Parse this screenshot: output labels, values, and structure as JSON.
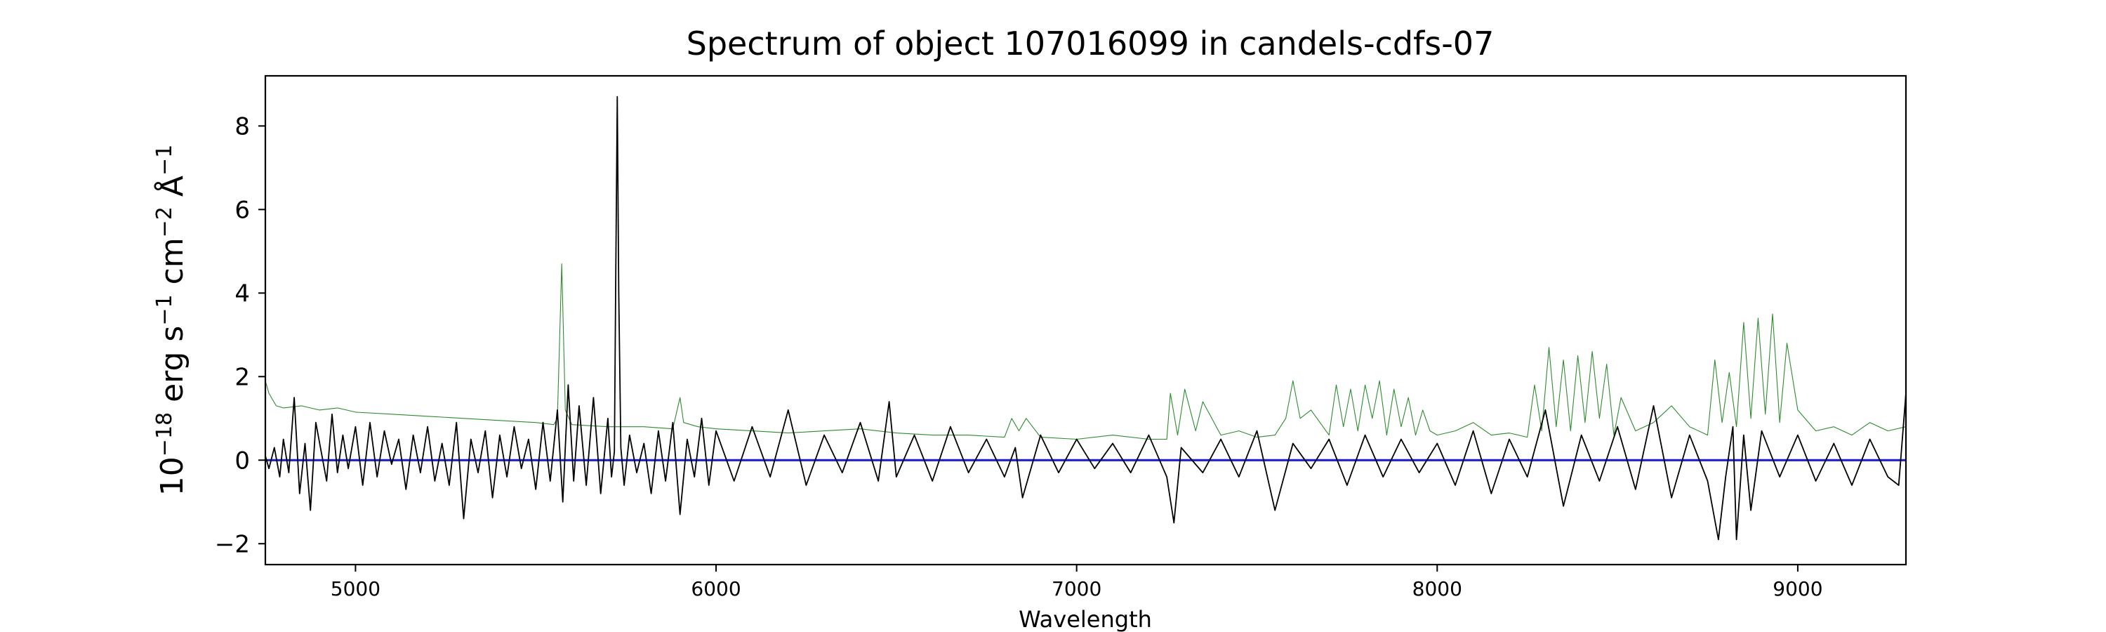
{
  "chart_data": {
    "type": "line",
    "title": "Spectrum of object 107016099 in candels-cdfs-07",
    "xlabel": "Wavelength",
    "ylabel": {
      "parts": [
        {
          "text": "10",
          "sup": false
        },
        {
          "text": "−18",
          "sup": true
        },
        {
          "text": " erg s",
          "sup": false
        },
        {
          "text": "−1",
          "sup": true
        },
        {
          "text": " cm",
          "sup": false
        },
        {
          "text": "−2",
          "sup": true
        },
        {
          "text": " Å",
          "sup": false
        },
        {
          "text": "−1",
          "sup": true
        }
      ]
    },
    "xlim": [
      4750,
      9300
    ],
    "ylim": [
      -2.5,
      9.2
    ],
    "xticks": [
      {
        "value": 5000,
        "label": "5000"
      },
      {
        "value": 6000,
        "label": "6000"
      },
      {
        "value": 7000,
        "label": "7000"
      },
      {
        "value": 8000,
        "label": "8000"
      },
      {
        "value": 9000,
        "label": "9000"
      }
    ],
    "yticks": [
      {
        "value": -2,
        "label": "−2"
      },
      {
        "value": 0,
        "label": "0"
      },
      {
        "value": 2,
        "label": "2"
      },
      {
        "value": 4,
        "label": "4"
      },
      {
        "value": 6,
        "label": "6"
      },
      {
        "value": 8,
        "label": "8"
      }
    ],
    "grid": false,
    "legend": "none",
    "series": [
      {
        "role": "flux",
        "color": "#000000",
        "width": 1.8,
        "x": [
          4750,
          4760,
          4775,
          4790,
          4800,
          4815,
          4830,
          4845,
          4860,
          4875,
          4890,
          4905,
          4920,
          4935,
          4950,
          4965,
          4980,
          5000,
          5020,
          5040,
          5060,
          5080,
          5100,
          5120,
          5140,
          5160,
          5180,
          5200,
          5220,
          5240,
          5260,
          5280,
          5300,
          5320,
          5340,
          5360,
          5380,
          5400,
          5420,
          5440,
          5460,
          5480,
          5500,
          5520,
          5540,
          5560,
          5575,
          5590,
          5605,
          5620,
          5640,
          5660,
          5680,
          5700,
          5710,
          5718,
          5722,
          5726,
          5730,
          5736,
          5745,
          5760,
          5780,
          5800,
          5820,
          5840,
          5860,
          5880,
          5900,
          5920,
          5940,
          5960,
          5980,
          6000,
          6050,
          6100,
          6150,
          6200,
          6250,
          6300,
          6350,
          6400,
          6450,
          6480,
          6500,
          6550,
          6600,
          6650,
          6700,
          6750,
          6800,
          6830,
          6850,
          6900,
          6950,
          7000,
          7050,
          7100,
          7150,
          7200,
          7250,
          7270,
          7290,
          7350,
          7400,
          7450,
          7500,
          7550,
          7600,
          7650,
          7700,
          7750,
          7800,
          7850,
          7900,
          7950,
          8000,
          8050,
          8100,
          8150,
          8200,
          8250,
          8300,
          8350,
          8400,
          8450,
          8500,
          8550,
          8600,
          8650,
          8700,
          8750,
          8780,
          8800,
          8820,
          8830,
          8850,
          8870,
          8900,
          8950,
          9000,
          9050,
          9100,
          9150,
          9200,
          9250,
          9280,
          9300
        ],
        "y": [
          0.1,
          -0.2,
          0.3,
          -0.4,
          0.5,
          -0.3,
          1.5,
          -0.8,
          0.4,
          -1.2,
          0.9,
          0.2,
          -0.5,
          1.1,
          -0.3,
          0.6,
          -0.2,
          0.8,
          -0.6,
          0.9,
          -0.4,
          0.7,
          -0.1,
          0.5,
          -0.7,
          0.6,
          -0.3,
          0.8,
          -0.5,
          0.4,
          -0.6,
          0.9,
          -1.4,
          0.5,
          -0.3,
          0.7,
          -0.9,
          0.6,
          -0.4,
          0.8,
          -0.2,
          0.5,
          -0.7,
          0.9,
          -0.5,
          1.2,
          -1.0,
          1.8,
          -0.5,
          1.3,
          -0.6,
          1.5,
          -0.8,
          1.0,
          -0.4,
          0.2,
          4.5,
          8.7,
          4.0,
          0.3,
          -0.6,
          0.6,
          -0.3,
          0.4,
          -0.8,
          0.7,
          -0.5,
          0.9,
          -1.3,
          0.5,
          -0.4,
          1.0,
          -0.6,
          0.7,
          -0.5,
          0.8,
          -0.4,
          1.2,
          -0.6,
          0.6,
          -0.3,
          0.9,
          -0.5,
          1.4,
          -0.4,
          0.6,
          -0.5,
          0.8,
          -0.3,
          0.5,
          -0.4,
          0.3,
          -0.9,
          0.6,
          -0.3,
          0.5,
          -0.2,
          0.4,
          -0.3,
          0.6,
          -0.4,
          -1.5,
          0.3,
          -0.3,
          0.5,
          -0.4,
          0.7,
          -1.2,
          0.4,
          -0.2,
          0.5,
          -0.6,
          0.6,
          -0.4,
          0.5,
          -0.3,
          0.4,
          -0.6,
          0.7,
          -0.8,
          0.5,
          -0.4,
          1.2,
          -1.1,
          0.6,
          -0.5,
          0.8,
          -0.7,
          1.3,
          -0.9,
          0.6,
          -0.5,
          -1.9,
          -0.4,
          0.8,
          -1.9,
          0.6,
          -1.2,
          0.7,
          -0.4,
          0.6,
          -0.5,
          0.4,
          -0.6,
          0.5,
          -0.4,
          -0.6,
          1.6
        ]
      },
      {
        "role": "error",
        "color": "#2e8b2e",
        "width": 1.1,
        "x": [
          4750,
          4760,
          4780,
          4800,
          4850,
          4900,
          4950,
          5000,
          5100,
          5200,
          5300,
          5400,
          5500,
          5550,
          5560,
          5572,
          5582,
          5600,
          5700,
          5800,
          5880,
          5900,
          5910,
          5950,
          6000,
          6100,
          6200,
          6300,
          6400,
          6500,
          6600,
          6700,
          6800,
          6820,
          6840,
          6860,
          6900,
          7000,
          7100,
          7200,
          7250,
          7260,
          7280,
          7300,
          7330,
          7350,
          7400,
          7450,
          7500,
          7550,
          7580,
          7600,
          7620,
          7650,
          7700,
          7720,
          7740,
          7760,
          7780,
          7800,
          7820,
          7840,
          7860,
          7880,
          7900,
          7920,
          7940,
          7960,
          7980,
          8000,
          8050,
          8100,
          8150,
          8200,
          8250,
          8270,
          8290,
          8310,
          8330,
          8350,
          8370,
          8390,
          8410,
          8430,
          8450,
          8470,
          8490,
          8510,
          8550,
          8600,
          8650,
          8700,
          8750,
          8770,
          8790,
          8810,
          8830,
          8850,
          8870,
          8890,
          8910,
          8930,
          8950,
          8970,
          9000,
          9050,
          9100,
          9150,
          9200,
          9250,
          9300
        ],
        "y": [
          1.9,
          1.6,
          1.3,
          1.25,
          1.3,
          1.2,
          1.25,
          1.15,
          1.1,
          1.05,
          1.0,
          0.95,
          0.9,
          0.85,
          1.0,
          4.7,
          1.2,
          0.85,
          0.8,
          0.8,
          0.75,
          1.5,
          0.9,
          0.8,
          0.75,
          0.7,
          0.65,
          0.7,
          0.75,
          0.65,
          0.6,
          0.6,
          0.55,
          1.0,
          0.7,
          1.0,
          0.55,
          0.5,
          0.6,
          0.5,
          0.5,
          1.6,
          0.6,
          1.7,
          0.7,
          1.4,
          0.6,
          0.7,
          0.55,
          0.6,
          1.0,
          1.9,
          1.0,
          1.2,
          0.6,
          1.8,
          0.8,
          1.7,
          0.7,
          1.8,
          1.0,
          1.9,
          0.6,
          1.7,
          0.8,
          1.5,
          0.6,
          1.2,
          0.7,
          0.6,
          0.7,
          0.9,
          0.6,
          0.65,
          0.55,
          1.8,
          0.7,
          2.7,
          0.8,
          2.4,
          0.7,
          2.5,
          0.9,
          2.6,
          1.0,
          2.3,
          0.6,
          1.5,
          0.7,
          0.9,
          1.3,
          0.8,
          0.6,
          2.4,
          0.9,
          2.1,
          0.8,
          3.3,
          1.0,
          3.4,
          1.1,
          3.5,
          0.9,
          2.8,
          1.2,
          0.7,
          0.8,
          0.6,
          0.9,
          0.7,
          0.8
        ]
      },
      {
        "role": "zero",
        "color": "#1f1fcc",
        "width": 3.2,
        "x": [
          4750,
          9300
        ],
        "y": [
          0,
          0
        ]
      }
    ]
  }
}
